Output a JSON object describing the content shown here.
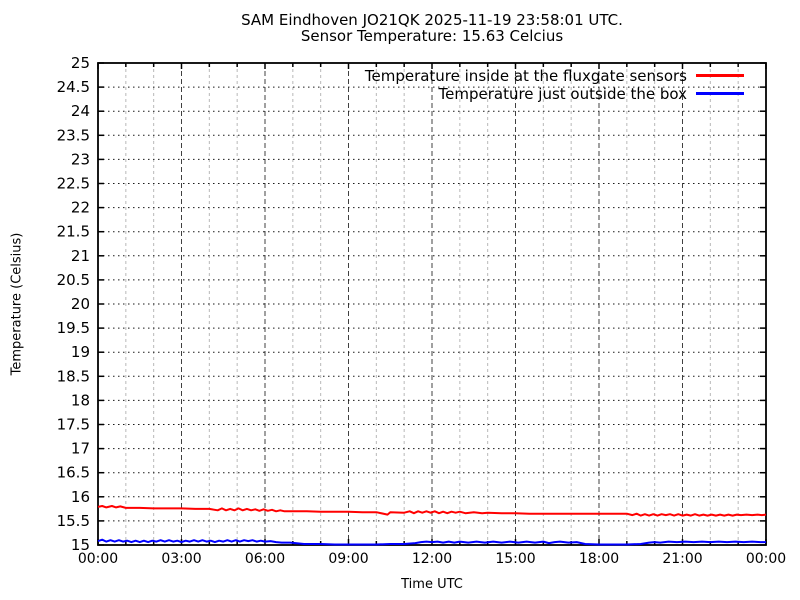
{
  "title": {
    "line1": "SAM Eindhoven JO21QK 2025-11-19 23:58:01 UTC.",
    "line2": "Sensor Temperature: 15.63 Celcius"
  },
  "legend": {
    "position": "top-right",
    "items": [
      {
        "label": "Temperature inside at the fluxgate sensors",
        "color": "#ff0000"
      },
      {
        "label": "Temperature just outside the box",
        "color": "#0000ff"
      }
    ]
  },
  "axes": {
    "x_title": "Time UTC",
    "y_title": "Temperature (Celsius)"
  },
  "chart_data": {
    "type": "line",
    "title": "SAM Eindhoven JO21QK 2025-11-19 23:58:01 UTC. / Sensor Temperature: 15.63 Celcius",
    "xlabel": "Time UTC",
    "ylabel": "Temperature (Celsius)",
    "x_unit": "hours UTC",
    "xlim": [
      0,
      24
    ],
    "ylim": [
      15,
      25
    ],
    "x_tick_labels": [
      "00:00",
      "03:00",
      "06:00",
      "09:00",
      "12:00",
      "15:00",
      "18:00",
      "21:00",
      "00:00"
    ],
    "x_tick_hours": [
      0,
      3,
      6,
      9,
      12,
      15,
      18,
      21,
      24
    ],
    "x_minor_tick_every_hours": 1,
    "y_tick_labels": [
      "15",
      "15.5",
      "16",
      "16.5",
      "17",
      "17.5",
      "18",
      "18.5",
      "19",
      "19.5",
      "20",
      "20.5",
      "21",
      "21.5",
      "22",
      "22.5",
      "23",
      "23.5",
      "24",
      "24.5",
      "25"
    ],
    "grid": true,
    "legend_position": "top-right",
    "series": [
      {
        "name": "Temperature inside at the fluxgate sensors",
        "color": "#ff0000",
        "points": [
          [
            0,
            15.79
          ],
          [
            0.15,
            15.81
          ],
          [
            0.3,
            15.78
          ],
          [
            0.5,
            15.81
          ],
          [
            0.65,
            15.78
          ],
          [
            0.8,
            15.8
          ],
          [
            1,
            15.77
          ],
          [
            1.5,
            15.77
          ],
          [
            2,
            15.76
          ],
          [
            2.5,
            15.76
          ],
          [
            3,
            15.76
          ],
          [
            3.5,
            15.75
          ],
          [
            4,
            15.75
          ],
          [
            4.3,
            15.72
          ],
          [
            4.45,
            15.76
          ],
          [
            4.6,
            15.72
          ],
          [
            4.75,
            15.75
          ],
          [
            4.9,
            15.72
          ],
          [
            5.05,
            15.76
          ],
          [
            5.2,
            15.72
          ],
          [
            5.35,
            15.75
          ],
          [
            5.5,
            15.72
          ],
          [
            5.65,
            15.74
          ],
          [
            5.8,
            15.71
          ],
          [
            5.95,
            15.74
          ],
          [
            6.1,
            15.71
          ],
          [
            6.25,
            15.73
          ],
          [
            6.4,
            15.7
          ],
          [
            6.55,
            15.72
          ],
          [
            6.7,
            15.7
          ],
          [
            7,
            15.7
          ],
          [
            7.5,
            15.7
          ],
          [
            8,
            15.69
          ],
          [
            8.5,
            15.69
          ],
          [
            9,
            15.69
          ],
          [
            9.5,
            15.68
          ],
          [
            10,
            15.68
          ],
          [
            10.4,
            15.63
          ],
          [
            10.5,
            15.68
          ],
          [
            11,
            15.67
          ],
          [
            11.2,
            15.7
          ],
          [
            11.35,
            15.66
          ],
          [
            11.5,
            15.7
          ],
          [
            11.65,
            15.67
          ],
          [
            11.8,
            15.7
          ],
          [
            11.95,
            15.67
          ],
          [
            12.1,
            15.7
          ],
          [
            12.25,
            15.66
          ],
          [
            12.4,
            15.69
          ],
          [
            12.55,
            15.66
          ],
          [
            12.7,
            15.69
          ],
          [
            12.85,
            15.67
          ],
          [
            13,
            15.69
          ],
          [
            13.2,
            15.66
          ],
          [
            13.5,
            15.68
          ],
          [
            13.8,
            15.66
          ],
          [
            14,
            15.67
          ],
          [
            14.5,
            15.66
          ],
          [
            15,
            15.66
          ],
          [
            15.5,
            15.65
          ],
          [
            16,
            15.65
          ],
          [
            17,
            15.65
          ],
          [
            18,
            15.65
          ],
          [
            19,
            15.65
          ],
          [
            19.2,
            15.62
          ],
          [
            19.35,
            15.65
          ],
          [
            19.5,
            15.61
          ],
          [
            19.65,
            15.64
          ],
          [
            19.8,
            15.61
          ],
          [
            19.95,
            15.64
          ],
          [
            20.1,
            15.61
          ],
          [
            20.25,
            15.64
          ],
          [
            20.4,
            15.62
          ],
          [
            20.55,
            15.64
          ],
          [
            20.7,
            15.61
          ],
          [
            20.85,
            15.64
          ],
          [
            21,
            15.61
          ],
          [
            21.15,
            15.63
          ],
          [
            21.3,
            15.61
          ],
          [
            21.45,
            15.64
          ],
          [
            21.6,
            15.61
          ],
          [
            21.75,
            15.63
          ],
          [
            21.9,
            15.61
          ],
          [
            22.05,
            15.63
          ],
          [
            22.2,
            15.61
          ],
          [
            22.35,
            15.63
          ],
          [
            22.5,
            15.61
          ],
          [
            22.65,
            15.63
          ],
          [
            22.8,
            15.61
          ],
          [
            22.95,
            15.63
          ],
          [
            23.1,
            15.62
          ],
          [
            23.3,
            15.63
          ],
          [
            23.5,
            15.62
          ],
          [
            23.7,
            15.63
          ],
          [
            23.85,
            15.62
          ],
          [
            24,
            15.63
          ]
        ]
      },
      {
        "name": "Temperature just outside the box",
        "color": "#0000ff",
        "points": [
          [
            0,
            15.08
          ],
          [
            0.15,
            15.11
          ],
          [
            0.3,
            15.07
          ],
          [
            0.45,
            15.1
          ],
          [
            0.6,
            15.07
          ],
          [
            0.75,
            15.1
          ],
          [
            0.9,
            15.07
          ],
          [
            1.05,
            15.09
          ],
          [
            1.2,
            15.06
          ],
          [
            1.35,
            15.09
          ],
          [
            1.5,
            15.06
          ],
          [
            1.65,
            15.09
          ],
          [
            1.8,
            15.06
          ],
          [
            1.95,
            15.09
          ],
          [
            2.1,
            15.07
          ],
          [
            2.25,
            15.1
          ],
          [
            2.4,
            15.07
          ],
          [
            2.55,
            15.1
          ],
          [
            2.7,
            15.07
          ],
          [
            2.85,
            15.09
          ],
          [
            3,
            15.06
          ],
          [
            3.15,
            15.09
          ],
          [
            3.3,
            15.07
          ],
          [
            3.45,
            15.1
          ],
          [
            3.6,
            15.07
          ],
          [
            3.75,
            15.1
          ],
          [
            3.9,
            15.07
          ],
          [
            4.05,
            15.09
          ],
          [
            4.2,
            15.06
          ],
          [
            4.35,
            15.09
          ],
          [
            4.5,
            15.07
          ],
          [
            4.65,
            15.1
          ],
          [
            4.8,
            15.07
          ],
          [
            4.95,
            15.1
          ],
          [
            5.1,
            15.07
          ],
          [
            5.25,
            15.1
          ],
          [
            5.4,
            15.08
          ],
          [
            5.55,
            15.1
          ],
          [
            5.7,
            15.07
          ],
          [
            5.85,
            15.09
          ],
          [
            6,
            15.07
          ],
          [
            6.2,
            15.08
          ],
          [
            6.4,
            15.06
          ],
          [
            6.6,
            15.05
          ],
          [
            6.9,
            15.05
          ],
          [
            7.1,
            15.04
          ],
          [
            7.4,
            15.02
          ],
          [
            8,
            15.02
          ],
          [
            8.5,
            15.01
          ],
          [
            9,
            15.01
          ],
          [
            9.5,
            15.01
          ],
          [
            10,
            15.01
          ],
          [
            10.5,
            15.02
          ],
          [
            11,
            15.02
          ],
          [
            11.4,
            15.04
          ],
          [
            11.6,
            15.06
          ],
          [
            11.8,
            15.07
          ],
          [
            12,
            15.06
          ],
          [
            12.2,
            15.07
          ],
          [
            12.4,
            15.05
          ],
          [
            12.6,
            15.07
          ],
          [
            12.8,
            15.05
          ],
          [
            13,
            15.07
          ],
          [
            13.3,
            15.05
          ],
          [
            13.6,
            15.07
          ],
          [
            13.9,
            15.05
          ],
          [
            14.2,
            15.07
          ],
          [
            14.5,
            15.05
          ],
          [
            14.8,
            15.07
          ],
          [
            15.1,
            15.05
          ],
          [
            15.4,
            15.07
          ],
          [
            15.7,
            15.05
          ],
          [
            16,
            15.07
          ],
          [
            16.2,
            15.04
          ],
          [
            16.4,
            15.06
          ],
          [
            16.6,
            15.07
          ],
          [
            16.9,
            15.05
          ],
          [
            17.2,
            15.06
          ],
          [
            17.5,
            15.02
          ],
          [
            18,
            15.01
          ],
          [
            18.5,
            15.01
          ],
          [
            19,
            15.01
          ],
          [
            19.5,
            15.02
          ],
          [
            19.8,
            15.05
          ],
          [
            20,
            15.06
          ],
          [
            20.2,
            15.05
          ],
          [
            20.5,
            15.07
          ],
          [
            20.8,
            15.06
          ],
          [
            21.1,
            15.07
          ],
          [
            21.4,
            15.06
          ],
          [
            21.7,
            15.07
          ],
          [
            22,
            15.06
          ],
          [
            22.3,
            15.07
          ],
          [
            22.6,
            15.06
          ],
          [
            22.9,
            15.07
          ],
          [
            23.2,
            15.06
          ],
          [
            23.5,
            15.07
          ],
          [
            23.8,
            15.06
          ],
          [
            24,
            15.06
          ]
        ]
      }
    ]
  },
  "colors": {
    "background": "#ffffff",
    "frame": "#000000",
    "major_grid": "#404040",
    "minor_grid": "#b8b8b8",
    "dotted_grid": "#1a1a1a"
  }
}
